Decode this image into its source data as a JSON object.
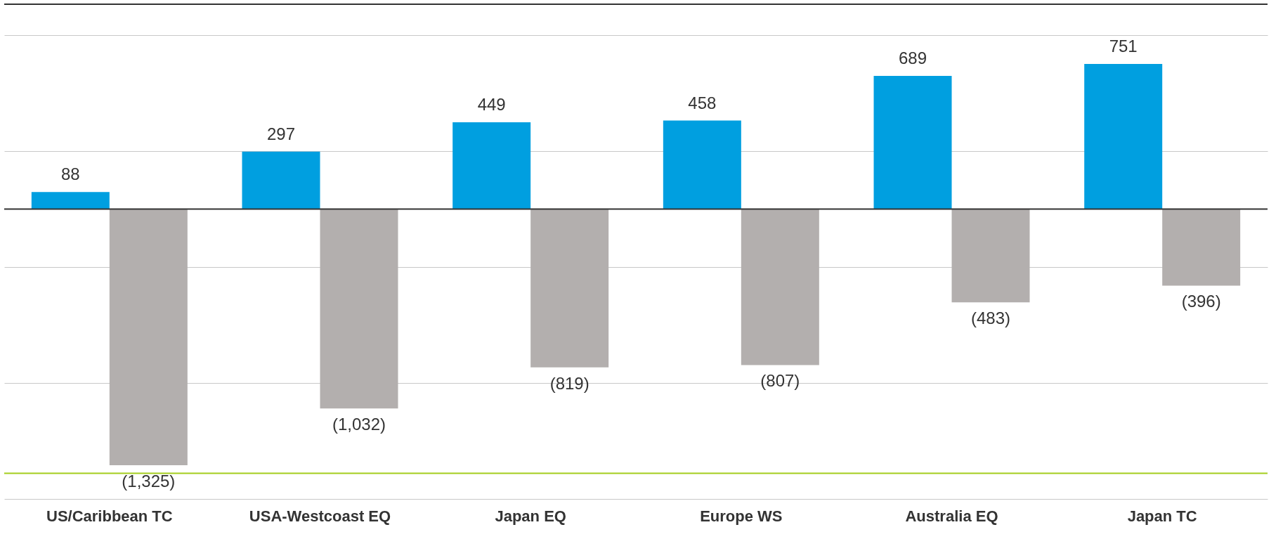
{
  "chart_data": {
    "type": "bar",
    "categories": [
      "US/Caribbean TC",
      "USA-Westcoast EQ",
      "Japan EQ",
      "Europe WS",
      "Australia EQ",
      "Japan TC"
    ],
    "series": [
      {
        "color": "#009fe0",
        "values": [
          88,
          297,
          449,
          458,
          689,
          751
        ],
        "value_labels": [
          "88",
          "297",
          "449",
          "458",
          "689",
          "751"
        ]
      },
      {
        "color": "#b3afae",
        "values": [
          -1325,
          -1032,
          -819,
          -807,
          -483,
          -396
        ],
        "value_labels": [
          "(1,325)",
          "(1,032)",
          "(819)",
          "(807)",
          "(483)",
          "(396)"
        ]
      }
    ],
    "ylim": [
      -1500,
      1060
    ],
    "yticks": [
      {
        "value": -1500,
        "label": null
      },
      {
        "value": -900,
        "label": null
      },
      {
        "value": -300,
        "label": null
      },
      {
        "value": 300,
        "label": null
      },
      {
        "value": 900,
        "label": null
      }
    ],
    "grid": "y",
    "tick_labels": "x",
    "ref_lines": [
      {
        "axis": "y",
        "value": 0,
        "color": "#333333"
      },
      {
        "axis": "y",
        "value": 1060,
        "color": "#333333"
      },
      {
        "axis": "y",
        "value": -1367,
        "color": "#a4cd1c"
      }
    ]
  }
}
